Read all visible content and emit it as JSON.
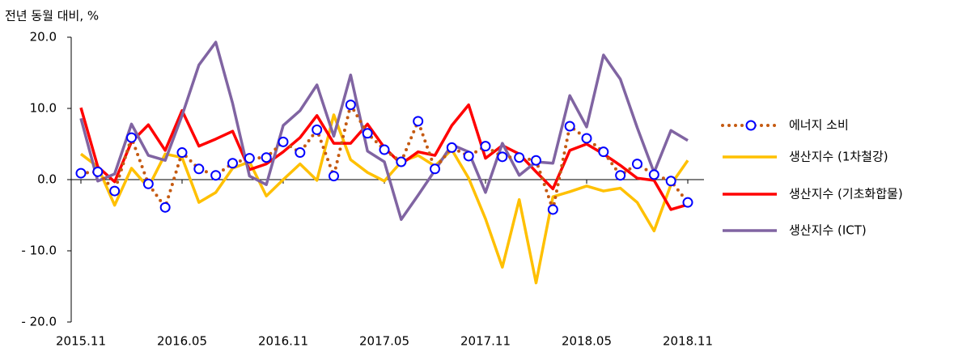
{
  "chart_data": {
    "type": "line",
    "y_label": "전년 동월 대비, %",
    "categories": [
      "2015.11",
      null,
      null,
      null,
      null,
      null,
      "2016.05",
      null,
      null,
      null,
      null,
      null,
      "2016.11",
      null,
      null,
      null,
      null,
      null,
      "2017.05",
      null,
      null,
      null,
      null,
      null,
      "2017.11",
      null,
      null,
      null,
      null,
      null,
      "2018.05",
      null,
      null,
      null,
      null,
      null,
      "2018.11"
    ],
    "ylim": [
      -20,
      20
    ],
    "yticks": [
      {
        "value": 20,
        "label": "20.0"
      },
      {
        "value": 10,
        "label": "10.0"
      },
      {
        "value": 0,
        "label": "0.0"
      },
      {
        "value": -10,
        "label": "- 10.0"
      },
      {
        "value": -20,
        "label": "- 20.0"
      }
    ],
    "legend": "right",
    "series": [
      {
        "name": "에너지 소비",
        "color": "#c55a11",
        "dash": "dotted",
        "marker": "circle",
        "marker_color": "#0000ff",
        "values": [
          0.9,
          1.1,
          -1.6,
          5.9,
          -0.6,
          -3.9,
          3.8,
          1.5,
          0.6,
          2.3,
          3.0,
          3.1,
          5.3,
          3.8,
          7.0,
          0.5,
          10.5,
          6.5,
          4.2,
          2.5,
          8.2,
          1.5,
          4.5,
          3.3,
          4.7,
          3.2,
          3.1,
          2.7,
          -4.2,
          7.5,
          5.8,
          3.9,
          0.6,
          2.2,
          0.7,
          -0.2,
          -3.2
        ]
      },
      {
        "name": "생산지수 (1차철강)",
        "color": "#ffc000",
        "values": [
          3.6,
          1.8,
          -3.6,
          1.6,
          -1.1,
          3.6,
          3.1,
          -3.2,
          -1.8,
          1.6,
          2.5,
          -2.3,
          0,
          2.2,
          -0.1,
          9.1,
          2.8,
          1.0,
          -0.2,
          2.5,
          3.4,
          1.9,
          4.2,
          0.2,
          -5.5,
          -12.3,
          -2.8,
          -14.5,
          -2.4,
          -1.7,
          -0.9,
          -1.6,
          -1.2,
          -3.2,
          -7.2,
          -0.7,
          2.7
        ]
      },
      {
        "name": "생산지수 (기초화합물)",
        "color": "#ff0000",
        "values": [
          10.1,
          1.8,
          -0.3,
          5.3,
          7.7,
          4.1,
          9.7,
          4.7,
          5.7,
          6.8,
          1.4,
          2.2,
          3.9,
          5.9,
          9.0,
          5.1,
          5.1,
          7.8,
          4.5,
          2.2,
          3.9,
          3.4,
          7.6,
          10.5,
          3.0,
          4.8,
          3.6,
          1.1,
          -1.3,
          4.1,
          5.0,
          3.6,
          2.0,
          0.2,
          -0.1,
          -4.2,
          -3.5
        ]
      },
      {
        "name": "생산지수 (ICT)",
        "color": "#8064a2",
        "values": [
          8.6,
          -0.2,
          0.8,
          7.8,
          3.4,
          2.7,
          9.0,
          16.1,
          19.3,
          10.7,
          0.5,
          -0.7,
          7.6,
          9.7,
          13.3,
          6.1,
          14.7,
          4.0,
          2.5,
          -5.6,
          -2.2,
          1.3,
          4.9,
          3.9,
          -1.8,
          5.1,
          0.6,
          2.5,
          2.3,
          11.8,
          7.4,
          17.5,
          14.1,
          7.3,
          1.0,
          6.9,
          5.5
        ]
      }
    ]
  }
}
